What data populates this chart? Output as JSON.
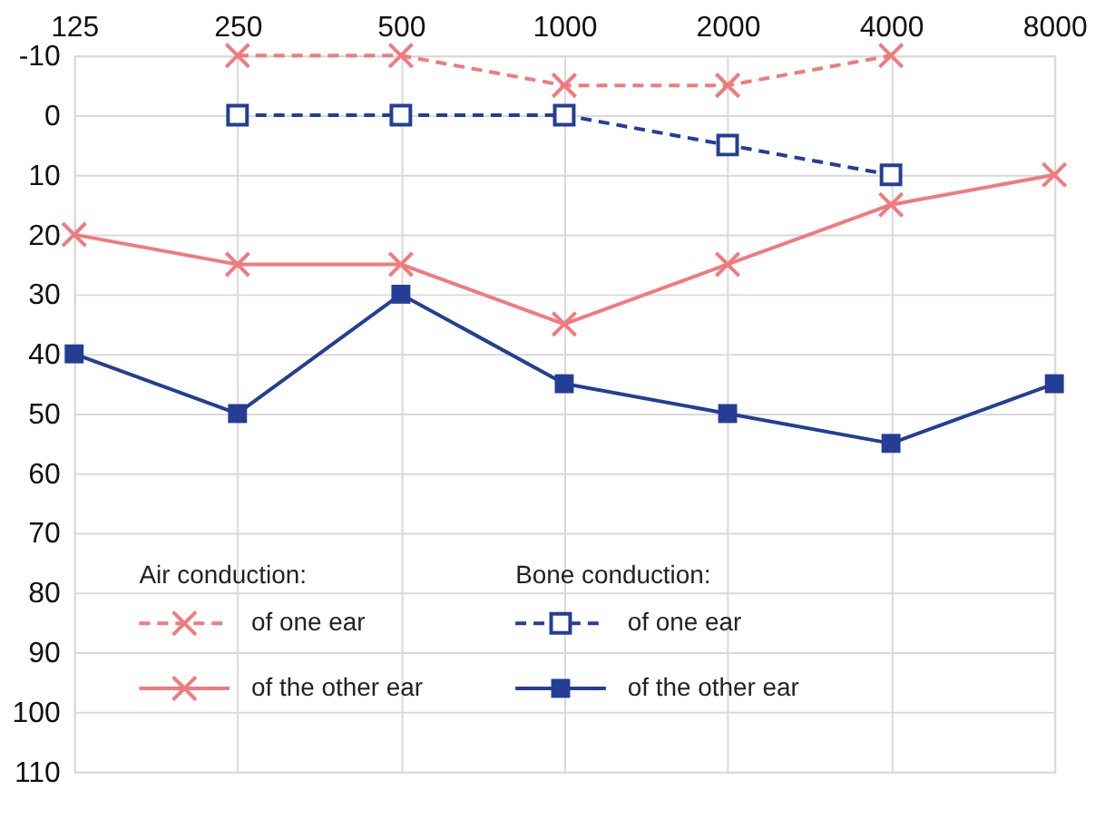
{
  "chart_data": {
    "type": "line",
    "log": "x",
    "x": [
      125,
      250,
      500,
      1000,
      2000,
      4000,
      8000
    ],
    "xlim": [
      125,
      8000
    ],
    "xticks": [
      125,
      250,
      500,
      1000,
      2000,
      4000,
      8000
    ],
    "ylim": [
      110,
      -10
    ],
    "yticks": [
      -10,
      0,
      10,
      20,
      30,
      40,
      50,
      60,
      70,
      80,
      90,
      100,
      110
    ],
    "grid": true,
    "legend": "bottom left",
    "annotations": [
      "Air conduction:",
      "Bone conduction:"
    ],
    "series": [
      {
        "name": "of one ear",
        "color": "#f07a7e",
        "marker": "cross",
        "line_style": "dashed",
        "values": [
          null,
          -10,
          -10,
          -5,
          -5,
          -10,
          null
        ]
      },
      {
        "name": "of the other ear",
        "color": "#f07a7e",
        "marker": "cross",
        "line_style": "solid",
        "values": [
          20,
          25,
          25,
          35,
          25,
          15,
          10
        ]
      },
      {
        "name": "of one ear",
        "color": "#233e94",
        "marker": "square",
        "line_style": "dashed",
        "values": [
          null,
          0,
          0,
          0,
          5,
          10,
          null
        ]
      },
      {
        "name": "of the other ear",
        "color": "#233e94",
        "marker": "square",
        "line_style": "solid",
        "values": [
          40,
          50,
          30,
          45,
          50,
          55,
          45
        ]
      }
    ]
  }
}
